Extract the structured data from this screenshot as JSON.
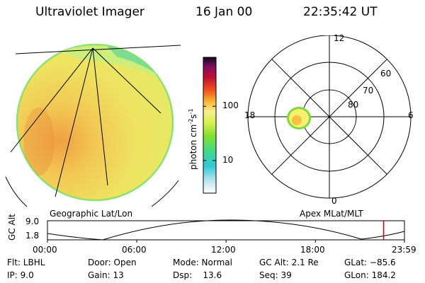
{
  "header": {
    "instrument": "Ultraviolet Imager",
    "date": "16 Jan 00",
    "time": "22:35:42 UT"
  },
  "image_panel": {
    "caption": "Geographic Lat/Lon"
  },
  "colorbar": {
    "unit_label": "photon cm",
    "unit_sup1": "-2",
    "unit_mid": "s",
    "unit_sup2": "-1",
    "ticks": [
      {
        "label": "100",
        "value": 100
      },
      {
        "label": "10",
        "value": 10
      }
    ],
    "range": [
      2.5,
      800
    ],
    "scale": "log"
  },
  "polar_plot": {
    "caption": "Apex MLat/MLT",
    "mlt_labels": {
      "top": "12",
      "bottom": "0",
      "left": "18",
      "right": "6"
    },
    "lat_labels": [
      "60",
      "70",
      "80"
    ]
  },
  "timeline": {
    "ylabel": "GC Alt",
    "ymax_label": "9.0",
    "ymin_label": "1.8",
    "xticks": [
      "00:00",
      "06:00",
      "12:00",
      "18:00",
      "23:59"
    ],
    "marker_time": "22:35",
    "marker_color": "#cc0000"
  },
  "info": {
    "flt": "Flt: LBHL",
    "ip": "IP:  9.0",
    "door": "Door: Open",
    "gain": "Gain: 13",
    "mode": "Mode: Normal",
    "dsp": "Dsp:    13.6",
    "gcalt": "GC Alt: 2.1 Re",
    "seq": "Seq: 39",
    "glat": "GLat: −85.6",
    "glon": "GLon: 184.2"
  }
}
